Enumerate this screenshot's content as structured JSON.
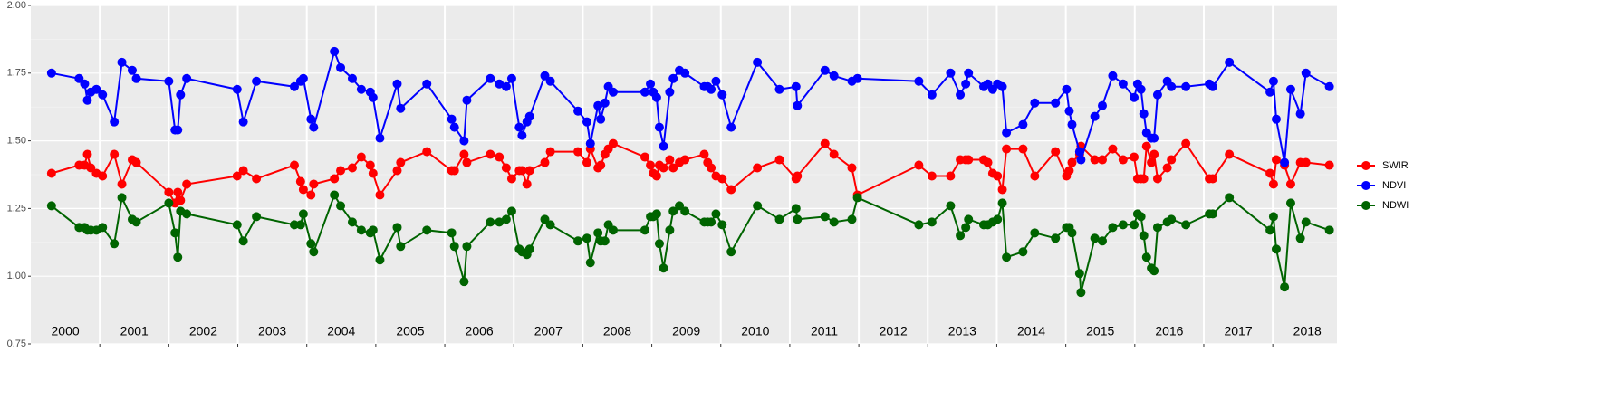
{
  "chart_data": {
    "type": "line",
    "x": [
      2000.3,
      2000.7,
      2000.78,
      2000.82,
      2000.87,
      2000.95,
      2001.04,
      2001.21,
      2001.32,
      2001.47,
      2001.53,
      2002.0,
      2002.09,
      2002.13,
      2002.17,
      2002.26,
      2002.99,
      2003.08,
      2003.27,
      2003.82,
      2003.91,
      2003.95,
      2004.06,
      2004.1,
      2004.4,
      2004.49,
      2004.66,
      2004.79,
      2004.92,
      2004.96,
      2005.06,
      2005.31,
      2005.36,
      2005.74,
      2006.1,
      2006.14,
      2006.28,
      2006.32,
      2006.66,
      2006.79,
      2006.89,
      2006.97,
      2007.08,
      2007.12,
      2007.19,
      2007.23,
      2007.45,
      2007.53,
      2007.93,
      2008.06,
      2008.11,
      2008.22,
      2008.26,
      2008.32,
      2008.37,
      2008.44,
      2008.9,
      2008.98,
      2009.02,
      2009.07,
      2009.11,
      2009.17,
      2009.26,
      2009.31,
      2009.4,
      2009.48,
      2009.76,
      2009.81,
      2009.86,
      2009.93,
      2010.02,
      2010.15,
      2010.53,
      2010.85,
      2011.09,
      2011.11,
      2011.51,
      2011.64,
      2011.9,
      2011.98,
      2012.87,
      2013.06,
      2013.33,
      2013.47,
      2013.55,
      2013.59,
      2013.81,
      2013.87,
      2013.94,
      2014.01,
      2014.08,
      2014.14,
      2014.38,
      2014.55,
      2014.85,
      2015.01,
      2015.05,
      2015.09,
      2015.2,
      2015.22,
      2015.42,
      2015.53,
      2015.68,
      2015.83,
      2015.99,
      2016.04,
      2016.09,
      2016.13,
      2016.17,
      2016.24,
      2016.28,
      2016.33,
      2016.47,
      2016.53,
      2016.74,
      2017.08,
      2017.13,
      2017.37,
      2017.96,
      2018.01,
      2018.05,
      2018.17,
      2018.26,
      2018.4,
      2018.48,
      2018.82
    ],
    "series": [
      {
        "name": "SWIR",
        "color": "#ff0000",
        "values": [
          1.38,
          1.41,
          1.41,
          1.45,
          1.4,
          1.38,
          1.37,
          1.45,
          1.34,
          1.43,
          1.42,
          1.31,
          1.27,
          1.31,
          1.28,
          1.34,
          1.37,
          1.39,
          1.36,
          1.41,
          1.35,
          1.32,
          1.3,
          1.34,
          1.36,
          1.39,
          1.4,
          1.44,
          1.41,
          1.38,
          1.3,
          1.39,
          1.42,
          1.46,
          1.39,
          1.39,
          1.45,
          1.42,
          1.45,
          1.44,
          1.4,
          1.36,
          1.39,
          1.39,
          1.34,
          1.39,
          1.42,
          1.46,
          1.46,
          1.42,
          1.47,
          1.4,
          1.41,
          1.45,
          1.47,
          1.49,
          1.44,
          1.41,
          1.38,
          1.37,
          1.41,
          1.4,
          1.43,
          1.4,
          1.42,
          1.43,
          1.45,
          1.42,
          1.4,
          1.37,
          1.36,
          1.32,
          1.4,
          1.43,
          1.36,
          1.37,
          1.49,
          1.45,
          1.4,
          1.3,
          1.41,
          1.37,
          1.37,
          1.43,
          1.43,
          1.43,
          1.43,
          1.42,
          1.38,
          1.37,
          1.32,
          1.47,
          1.47,
          1.37,
          1.46,
          1.37,
          1.39,
          1.42,
          1.45,
          1.48,
          1.43,
          1.43,
          1.47,
          1.43,
          1.44,
          1.36,
          1.36,
          1.36,
          1.48,
          1.42,
          1.45,
          1.36,
          1.4,
          1.43,
          1.49,
          1.36,
          1.36,
          1.45,
          1.38,
          1.34,
          1.43,
          1.41,
          1.34,
          1.42,
          1.42,
          1.41
        ]
      },
      {
        "name": "NDVI",
        "color": "#0000ff",
        "values": [
          1.75,
          1.73,
          1.71,
          1.65,
          1.68,
          1.69,
          1.67,
          1.57,
          1.79,
          1.76,
          1.73,
          1.72,
          1.54,
          1.54,
          1.67,
          1.73,
          1.69,
          1.57,
          1.72,
          1.7,
          1.72,
          1.73,
          1.58,
          1.55,
          1.83,
          1.77,
          1.73,
          1.69,
          1.68,
          1.66,
          1.51,
          1.71,
          1.62,
          1.71,
          1.58,
          1.55,
          1.5,
          1.65,
          1.73,
          1.71,
          1.7,
          1.73,
          1.55,
          1.52,
          1.57,
          1.59,
          1.74,
          1.72,
          1.61,
          1.57,
          1.49,
          1.63,
          1.58,
          1.64,
          1.7,
          1.68,
          1.68,
          1.71,
          1.68,
          1.66,
          1.55,
          1.48,
          1.68,
          1.73,
          1.76,
          1.75,
          1.7,
          1.7,
          1.69,
          1.72,
          1.67,
          1.55,
          1.79,
          1.69,
          1.7,
          1.63,
          1.76,
          1.74,
          1.72,
          1.73,
          1.72,
          1.67,
          1.75,
          1.67,
          1.71,
          1.75,
          1.7,
          1.71,
          1.69,
          1.71,
          1.7,
          1.53,
          1.56,
          1.64,
          1.64,
          1.69,
          1.61,
          1.56,
          1.46,
          1.43,
          1.59,
          1.63,
          1.74,
          1.71,
          1.66,
          1.71,
          1.69,
          1.6,
          1.53,
          1.51,
          1.51,
          1.67,
          1.72,
          1.7,
          1.7,
          1.71,
          1.7,
          1.79,
          1.68,
          1.72,
          1.58,
          1.42,
          1.69,
          1.6,
          1.75,
          1.7
        ]
      },
      {
        "name": "NDWI",
        "color": "#006400",
        "values": [
          1.26,
          1.18,
          1.18,
          1.17,
          1.17,
          1.17,
          1.18,
          1.12,
          1.29,
          1.21,
          1.2,
          1.27,
          1.16,
          1.07,
          1.24,
          1.23,
          1.19,
          1.13,
          1.22,
          1.19,
          1.19,
          1.23,
          1.12,
          1.09,
          1.3,
          1.26,
          1.2,
          1.17,
          1.16,
          1.17,
          1.06,
          1.18,
          1.11,
          1.17,
          1.16,
          1.11,
          0.98,
          1.11,
          1.2,
          1.2,
          1.21,
          1.24,
          1.1,
          1.09,
          1.08,
          1.1,
          1.21,
          1.19,
          1.13,
          1.14,
          1.05,
          1.16,
          1.13,
          1.13,
          1.19,
          1.17,
          1.17,
          1.22,
          1.22,
          1.23,
          1.12,
          1.03,
          1.17,
          1.24,
          1.26,
          1.24,
          1.2,
          1.2,
          1.2,
          1.23,
          1.19,
          1.09,
          1.26,
          1.21,
          1.25,
          1.21,
          1.22,
          1.2,
          1.21,
          1.29,
          1.19,
          1.2,
          1.26,
          1.15,
          1.18,
          1.21,
          1.19,
          1.19,
          1.2,
          1.21,
          1.27,
          1.07,
          1.09,
          1.16,
          1.14,
          1.18,
          1.18,
          1.16,
          1.01,
          0.94,
          1.14,
          1.13,
          1.18,
          1.19,
          1.19,
          1.23,
          1.22,
          1.15,
          1.07,
          1.03,
          1.02,
          1.18,
          1.2,
          1.21,
          1.19,
          1.23,
          1.23,
          1.29,
          1.17,
          1.22,
          1.1,
          0.96,
          1.27,
          1.14,
          1.2,
          1.17
        ]
      }
    ],
    "xlim": [
      2000,
      2018.93
    ],
    "xticks": [
      2001,
      2002,
      2003,
      2004,
      2005,
      2006,
      2007,
      2008,
      2009,
      2010,
      2011,
      2012,
      2013,
      2014,
      2015,
      2016,
      2017,
      2018
    ],
    "year_labels": [
      {
        "value": 2000.5,
        "label": "2000"
      },
      {
        "value": 2001.5,
        "label": "2001"
      },
      {
        "value": 2002.5,
        "label": "2002"
      },
      {
        "value": 2003.5,
        "label": "2003"
      },
      {
        "value": 2004.5,
        "label": "2004"
      },
      {
        "value": 2005.5,
        "label": "2005"
      },
      {
        "value": 2006.5,
        "label": "2006"
      },
      {
        "value": 2007.5,
        "label": "2007"
      },
      {
        "value": 2008.5,
        "label": "2008"
      },
      {
        "value": 2009.5,
        "label": "2009"
      },
      {
        "value": 2010.5,
        "label": "2010"
      },
      {
        "value": 2011.5,
        "label": "2011"
      },
      {
        "value": 2012.5,
        "label": "2012"
      },
      {
        "value": 2013.5,
        "label": "2013"
      },
      {
        "value": 2014.5,
        "label": "2014"
      },
      {
        "value": 2015.5,
        "label": "2015"
      },
      {
        "value": 2016.5,
        "label": "2016"
      },
      {
        "value": 2017.5,
        "label": "2017"
      },
      {
        "value": 2018.5,
        "label": "2018"
      }
    ],
    "ylim": [
      0.75,
      2
    ],
    "yticks": [
      0.75,
      {
        "value": 1,
        "label": "1.00"
      },
      1.25,
      {
        "value": 1.5,
        "label": "1.50"
      },
      1.75,
      {
        "value": 2,
        "label": "2.00"
      }
    ],
    "grid": true
  }
}
